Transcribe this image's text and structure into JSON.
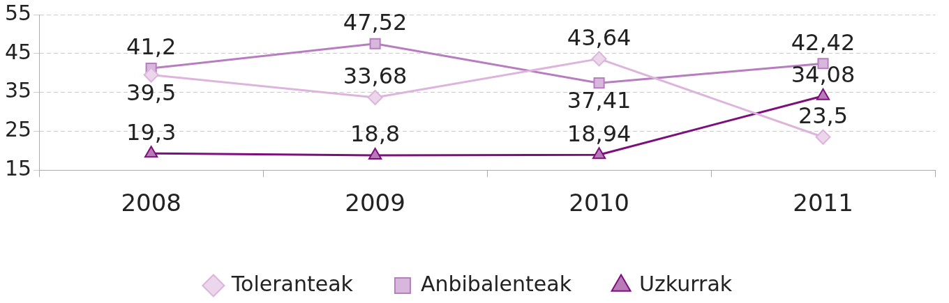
{
  "chart_data": {
    "type": "line",
    "categories": [
      "2008",
      "2009",
      "2010",
      "2011"
    ],
    "series": [
      {
        "name": "Toleranteak",
        "color": "#dcb4dc",
        "marker": "diamond",
        "values": [
          39.5,
          33.68,
          43.64,
          23.5
        ],
        "value_labels": [
          "39,5",
          "33,68",
          "43,64",
          "23,5"
        ]
      },
      {
        "name": "Anbibalenteak",
        "color": "#b87cc0",
        "marker": "square",
        "values": [
          41.2,
          47.52,
          37.41,
          42.42
        ],
        "value_labels": [
          "41,2",
          "47,52",
          "37,41",
          "42,42"
        ]
      },
      {
        "name": "Uzkurrak",
        "color": "#7d0f7d",
        "marker": "triangle",
        "values": [
          19.3,
          18.8,
          18.94,
          34.08
        ],
        "value_labels": [
          "19,3",
          "18,8",
          "18,94",
          "34,08"
        ]
      }
    ],
    "ylim": [
      15,
      55
    ],
    "yticks": [
      15,
      25,
      35,
      45,
      55
    ],
    "grid": "y",
    "legend": "bottom",
    "line_style": "solid"
  }
}
